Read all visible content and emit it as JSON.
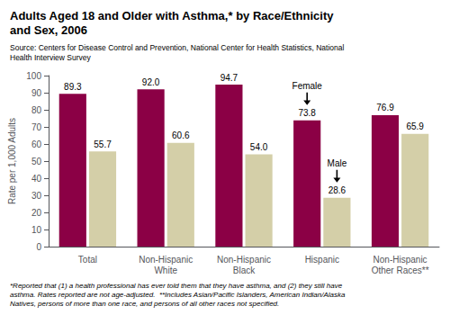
{
  "chart_data": {
    "type": "bar",
    "title": "Adults Aged 18 and Older with Asthma,* by Race/Ethnicity\nand Sex, 2006",
    "source": "Source: Centers for Disease Control and Prevention, National Center for Health Statistics, National\nHealth Interview Survey",
    "footnote": "*Reported that (1) a health professional has ever told them that they have asthma, and (2) they still have\nasthma. Rates reported are not age-adjusted.  **Includes Asian/Pacific Islanders, American Indian/Alaska\nNatives, persons of more than one race, and persons of all other races not specified.",
    "categories": [
      "Total",
      "Non-Hispanic\nWhite",
      "Non-Hispanic\nBlack",
      "Hispanic",
      "Non-Hispanic\nOther Races**"
    ],
    "series": [
      {
        "name": "Female",
        "color": "#8B0045",
        "values": [
          89.3,
          92.0,
          94.7,
          73.8,
          76.9
        ],
        "value_labels": [
          "89.3",
          "92.0",
          "94.7",
          "73.8",
          "76.9"
        ]
      },
      {
        "name": "Male",
        "color": "#D4CFA8",
        "values": [
          55.7,
          60.6,
          54.0,
          28.6,
          65.9
        ],
        "value_labels": [
          "55.7",
          "60.6",
          "54.0",
          "28.6",
          "65.9"
        ]
      }
    ],
    "ylabel": "Rate per 1,000 Adults",
    "ylim": [
      0,
      100
    ],
    "yticks": [
      0,
      10,
      20,
      30,
      40,
      50,
      60,
      70,
      80,
      90,
      100
    ],
    "annotations": [
      {
        "text": "Female",
        "series": "Female",
        "category": "Hispanic"
      },
      {
        "text": "Male",
        "series": "Male",
        "category": "Hispanic"
      }
    ],
    "data_labels": true,
    "grid": false
  }
}
